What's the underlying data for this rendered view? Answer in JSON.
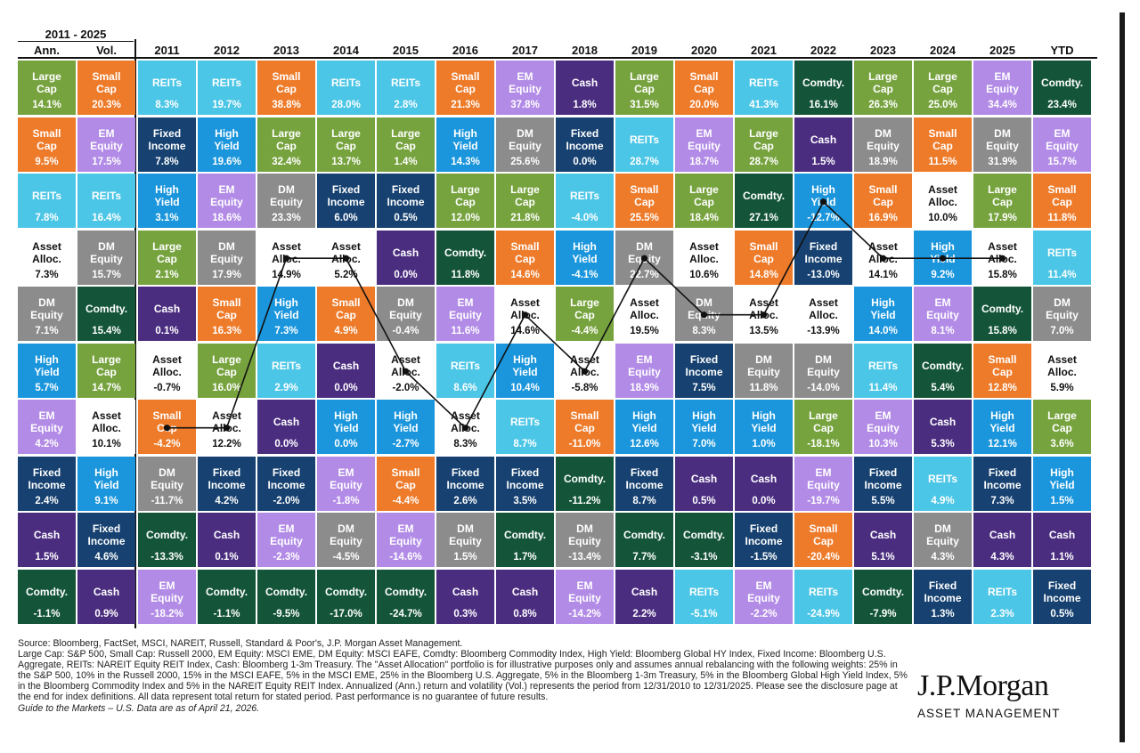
{
  "colors": {
    "Large Cap": "#77a33f",
    "Small Cap": "#ee7b2a",
    "EM Equity": "#b28be6",
    "DM Equity": "#8c8c8c",
    "REITs": "#4cc6e6",
    "Fixed Income": "#164170",
    "High Yield": "#1b96dc",
    "Cash": "#4b2d80",
    "Comdty.": "#14553a",
    "Asset Alloc.": "#ffffff"
  },
  "header": {
    "range": "2011 - 2025",
    "ann": "Ann.",
    "vol": "Vol."
  },
  "chart_data": {
    "type": "table",
    "columns": [
      "Ann.",
      "Vol.",
      "2011",
      "2012",
      "2013",
      "2014",
      "2015",
      "2016",
      "2017",
      "2018",
      "2019",
      "2020",
      "2021",
      "2022",
      "2023",
      "2024",
      "2025",
      "YTD"
    ],
    "rows": [
      [
        [
          "Large\nCap",
          "14.1%"
        ],
        [
          "Small\nCap",
          "20.3%"
        ],
        [
          "REITs",
          "8.3%"
        ],
        [
          "REITs",
          "19.7%"
        ],
        [
          "Small\nCap",
          "38.8%"
        ],
        [
          "REITs",
          "28.0%"
        ],
        [
          "REITs",
          "2.8%"
        ],
        [
          "Small\nCap",
          "21.3%"
        ],
        [
          "EM\nEquity",
          "37.8%"
        ],
        [
          "Cash",
          "1.8%"
        ],
        [
          "Large\nCap",
          "31.5%"
        ],
        [
          "Small\nCap",
          "20.0%"
        ],
        [
          "REITs",
          "41.3%"
        ],
        [
          "Comdty.",
          "16.1%"
        ],
        [
          "Large\nCap",
          "26.3%"
        ],
        [
          "Large\nCap",
          "25.0%"
        ],
        [
          "EM\nEquity",
          "34.4%"
        ],
        [
          "Comdty.",
          "23.4%"
        ]
      ],
      [
        [
          "Small\nCap",
          "9.5%"
        ],
        [
          "EM\nEquity",
          "17.5%"
        ],
        [
          "Fixed\nIncome",
          "7.8%"
        ],
        [
          "High\nYield",
          "19.6%"
        ],
        [
          "Large\nCap",
          "32.4%"
        ],
        [
          "Large\nCap",
          "13.7%"
        ],
        [
          "Large\nCap",
          "1.4%"
        ],
        [
          "High\nYield",
          "14.3%"
        ],
        [
          "DM\nEquity",
          "25.6%"
        ],
        [
          "Fixed\nIncome",
          "0.0%"
        ],
        [
          "REITs",
          "28.7%"
        ],
        [
          "EM\nEquity",
          "18.7%"
        ],
        [
          "Large\nCap",
          "28.7%"
        ],
        [
          "Cash",
          "1.5%"
        ],
        [
          "DM\nEquity",
          "18.9%"
        ],
        [
          "Small\nCap",
          "11.5%"
        ],
        [
          "DM\nEquity",
          "31.9%"
        ],
        [
          "EM\nEquity",
          "15.7%"
        ]
      ],
      [
        [
          "REITs",
          "7.8%"
        ],
        [
          "REITs",
          "16.4%"
        ],
        [
          "High\nYield",
          "3.1%"
        ],
        [
          "EM\nEquity",
          "18.6%"
        ],
        [
          "DM\nEquity",
          "23.3%"
        ],
        [
          "Fixed\nIncome",
          "6.0%"
        ],
        [
          "Fixed\nIncome",
          "0.5%"
        ],
        [
          "Large\nCap",
          "12.0%"
        ],
        [
          "Large\nCap",
          "21.8%"
        ],
        [
          "REITs",
          "-4.0%"
        ],
        [
          "Small\nCap",
          "25.5%"
        ],
        [
          "Large\nCap",
          "18.4%"
        ],
        [
          "Comdty.",
          "27.1%"
        ],
        [
          "High\nYield",
          "-12.7%"
        ],
        [
          "Small\nCap",
          "16.9%"
        ],
        [
          "Asset\nAlloc.",
          "10.0%"
        ],
        [
          "Large\nCap",
          "17.9%"
        ],
        [
          "Small\nCap",
          "11.8%"
        ]
      ],
      [
        [
          "Asset\nAlloc.",
          "7.3%"
        ],
        [
          "DM\nEquity",
          "15.7%"
        ],
        [
          "Large\nCap",
          "2.1%"
        ],
        [
          "DM\nEquity",
          "17.9%"
        ],
        [
          "Asset\nAlloc.",
          "14.9%"
        ],
        [
          "Asset\nAlloc.",
          "5.2%"
        ],
        [
          "Cash",
          "0.0%"
        ],
        [
          "Comdty.",
          "11.8%"
        ],
        [
          "Small\nCap",
          "14.6%"
        ],
        [
          "High\nYield",
          "-4.1%"
        ],
        [
          "DM\nEquity",
          "22.7%"
        ],
        [
          "Asset\nAlloc.",
          "10.6%"
        ],
        [
          "Small\nCap",
          "14.8%"
        ],
        [
          "Fixed\nIncome",
          "-13.0%"
        ],
        [
          "Asset\nAlloc.",
          "14.1%"
        ],
        [
          "High\nYield",
          "9.2%"
        ],
        [
          "Asset\nAlloc.",
          "15.8%"
        ],
        [
          "REITs",
          "11.4%"
        ]
      ],
      [
        [
          "DM\nEquity",
          "7.1%"
        ],
        [
          "Comdty.",
          "15.4%"
        ],
        [
          "Cash",
          "0.1%"
        ],
        [
          "Small\nCap",
          "16.3%"
        ],
        [
          "High\nYield",
          "7.3%"
        ],
        [
          "Small\nCap",
          "4.9%"
        ],
        [
          "DM\nEquity",
          "-0.4%"
        ],
        [
          "EM\nEquity",
          "11.6%"
        ],
        [
          "Asset\nAlloc.",
          "14.6%"
        ],
        [
          "Large\nCap",
          "-4.4%"
        ],
        [
          "Asset\nAlloc.",
          "19.5%"
        ],
        [
          "DM\nEquity",
          "8.3%"
        ],
        [
          "Asset\nAlloc.",
          "13.5%"
        ],
        [
          "Asset\nAlloc.",
          "-13.9%"
        ],
        [
          "High\nYield",
          "14.0%"
        ],
        [
          "EM\nEquity",
          "8.1%"
        ],
        [
          "Comdty.",
          "15.8%"
        ],
        [
          "DM\nEquity",
          "7.0%"
        ]
      ],
      [
        [
          "High\nYield",
          "5.7%"
        ],
        [
          "Large\nCap",
          "14.7%"
        ],
        [
          "Asset\nAlloc.",
          "-0.7%"
        ],
        [
          "Large\nCap",
          "16.0%"
        ],
        [
          "REITs",
          "2.9%"
        ],
        [
          "Cash",
          "0.0%"
        ],
        [
          "Asset\nAlloc.",
          "-2.0%"
        ],
        [
          "REITs",
          "8.6%"
        ],
        [
          "High\nYield",
          "10.4%"
        ],
        [
          "Asset\nAlloc.",
          "-5.8%"
        ],
        [
          "EM\nEquity",
          "18.9%"
        ],
        [
          "Fixed\nIncome",
          "7.5%"
        ],
        [
          "DM\nEquity",
          "11.8%"
        ],
        [
          "DM\nEquity",
          "-14.0%"
        ],
        [
          "REITs",
          "11.4%"
        ],
        [
          "Comdty.",
          "5.4%"
        ],
        [
          "Small\nCap",
          "12.8%"
        ],
        [
          "Asset\nAlloc.",
          "5.9%"
        ]
      ],
      [
        [
          "EM\nEquity",
          "4.2%"
        ],
        [
          "Asset\nAlloc.",
          "10.1%"
        ],
        [
          "Small\nCap",
          "-4.2%"
        ],
        [
          "Asset\nAlloc.",
          "12.2%"
        ],
        [
          "Cash",
          "0.0%"
        ],
        [
          "High\nYield",
          "0.0%"
        ],
        [
          "High\nYield",
          "-2.7%"
        ],
        [
          "Asset\nAlloc.",
          "8.3%"
        ],
        [
          "REITs",
          "8.7%"
        ],
        [
          "Small\nCap",
          "-11.0%"
        ],
        [
          "High\nYield",
          "12.6%"
        ],
        [
          "High\nYield",
          "7.0%"
        ],
        [
          "High\nYield",
          "1.0%"
        ],
        [
          "Large\nCap",
          "-18.1%"
        ],
        [
          "EM\nEquity",
          "10.3%"
        ],
        [
          "Cash",
          "5.3%"
        ],
        [
          "High\nYield",
          "12.1%"
        ],
        [
          "Large\nCap",
          "3.6%"
        ]
      ],
      [
        [
          "Fixed\nIncome",
          "2.4%"
        ],
        [
          "High\nYield",
          "9.1%"
        ],
        [
          "DM\nEquity",
          "-11.7%"
        ],
        [
          "Fixed\nIncome",
          "4.2%"
        ],
        [
          "Fixed\nIncome",
          "-2.0%"
        ],
        [
          "EM\nEquity",
          "-1.8%"
        ],
        [
          "Small\nCap",
          "-4.4%"
        ],
        [
          "Fixed\nIncome",
          "2.6%"
        ],
        [
          "Fixed\nIncome",
          "3.5%"
        ],
        [
          "Comdty.",
          "-11.2%"
        ],
        [
          "Fixed\nIncome",
          "8.7%"
        ],
        [
          "Cash",
          "0.5%"
        ],
        [
          "Cash",
          "0.0%"
        ],
        [
          "EM\nEquity",
          "-19.7%"
        ],
        [
          "Fixed\nIncome",
          "5.5%"
        ],
        [
          "REITs",
          "4.9%"
        ],
        [
          "Fixed\nIncome",
          "7.3%"
        ],
        [
          "High\nYield",
          "1.5%"
        ]
      ],
      [
        [
          "Cash",
          "1.5%"
        ],
        [
          "Fixed\nIncome",
          "4.6%"
        ],
        [
          "Comdty.",
          "-13.3%"
        ],
        [
          "Cash",
          "0.1%"
        ],
        [
          "EM\nEquity",
          "-2.3%"
        ],
        [
          "DM\nEquity",
          "-4.5%"
        ],
        [
          "EM\nEquity",
          "-14.6%"
        ],
        [
          "DM\nEquity",
          "1.5%"
        ],
        [
          "Comdty.",
          "1.7%"
        ],
        [
          "DM\nEquity",
          "-13.4%"
        ],
        [
          "Comdty.",
          "7.7%"
        ],
        [
          "Comdty.",
          "-3.1%"
        ],
        [
          "Fixed\nIncome",
          "-1.5%"
        ],
        [
          "Small\nCap",
          "-20.4%"
        ],
        [
          "Cash",
          "5.1%"
        ],
        [
          "DM\nEquity",
          "4.3%"
        ],
        [
          "Cash",
          "4.3%"
        ],
        [
          "Cash",
          "1.1%"
        ]
      ],
      [
        [
          "Comdty.",
          "-1.1%"
        ],
        [
          "Cash",
          "0.9%"
        ],
        [
          "EM\nEquity",
          "-18.2%"
        ],
        [
          "Comdty.",
          "-1.1%"
        ],
        [
          "Comdty.",
          "-9.5%"
        ],
        [
          "Comdty.",
          "-17.0%"
        ],
        [
          "Comdty.",
          "-24.7%"
        ],
        [
          "Cash",
          "0.3%"
        ],
        [
          "Cash",
          "0.8%"
        ],
        [
          "EM\nEquity",
          "-14.2%"
        ],
        [
          "Cash",
          "2.2%"
        ],
        [
          "REITs",
          "-5.1%"
        ],
        [
          "EM\nEquity",
          "-2.2%"
        ],
        [
          "REITs",
          "-24.9%"
        ],
        [
          "Comdty.",
          "-7.9%"
        ],
        [
          "Fixed\nIncome",
          "1.3%"
        ],
        [
          "REITs",
          "2.3%"
        ],
        [
          "Fixed\nIncome",
          "0.5%"
        ]
      ]
    ],
    "asset_alloc_ranks": [
      6,
      6,
      3,
      3,
      5,
      6,
      4,
      5,
      3,
      4,
      4,
      2,
      3,
      3,
      3
    ]
  },
  "footnotes": {
    "line1": "Source: Bloomberg, FactSet, MSCI, NAREIT, Russell, Standard & Poor's, J.P. Morgan Asset Management.",
    "line2": "Large Cap: S&P 500, Small Cap: Russell 2000, EM Equity: MSCI EME, DM Equity: MSCI EAFE, Comdty: Bloomberg Commodity Index, High Yield: Bloomberg Global HY Index, Fixed Income: Bloomberg U.S. Aggregate, REITs: NAREIT Equity REIT Index, Cash: Bloomberg 1-3m Treasury. The \"Asset Allocation\" portfolio is for illustrative purposes only and assumes annual rebalancing with the following weights: 25% in the S&P 500, 10% in the Russell 2000, 15% in the MSCI EAFE, 5% in the MSCI EME, 25% in the Bloomberg U.S. Aggregate, 5% in the Bloomberg 1-3m Treasury, 5% in the Bloomberg Global High Yield Index, 5% in the Bloomberg Commodity Index and 5% in the NAREIT Equity REIT Index. Annualized (Ann.) return and volatility (Vol.) represents the period from 12/31/2010 to 12/31/2025. Please see the disclosure page at the end for index definitions. All data represent total return for stated period. Past performance is no guarantee of future results.",
    "line3": "Guide to the Markets – U.S. Data are as of April 21, 2026."
  },
  "logo": {
    "brand": "J.P.Morgan",
    "sub": "ASSET MANAGEMENT"
  }
}
